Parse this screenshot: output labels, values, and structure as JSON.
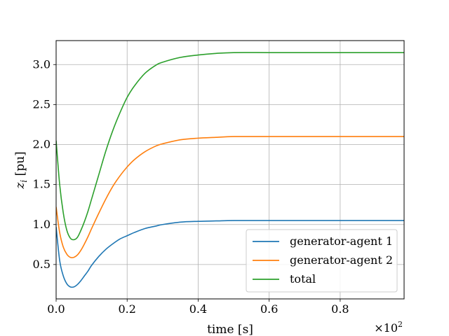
{
  "chart_data": {
    "type": "line",
    "title": "",
    "xlabel": "time [s]",
    "ylabel": "z_i [pu]",
    "ylabel_main": "z",
    "ylabel_sub": "i",
    "ylabel_unit": " [pu]",
    "x_offset_label": "×10",
    "x_offset_exponent": "2",
    "xlim": [
      0.0,
      0.98
    ],
    "ylim": [
      0.07,
      3.3
    ],
    "xticks": [
      0.0,
      0.2,
      0.4,
      0.6,
      0.8
    ],
    "xtick_labels": [
      "0.0",
      "0.2",
      "0.4",
      "0.6",
      "0.8"
    ],
    "yticks": [
      0.5,
      1.0,
      1.5,
      2.0,
      2.5,
      3.0
    ],
    "ytick_labels": [
      "0.5",
      "1.0",
      "1.5",
      "2.0",
      "2.5",
      "3.0"
    ],
    "grid": true,
    "legend_position": "lower-right",
    "series": [
      {
        "name": "generator-agent 1",
        "color": "#1f77b4",
        "x": [
          0.0,
          0.01,
          0.02,
          0.03,
          0.04,
          0.05,
          0.06,
          0.07,
          0.08,
          0.09,
          0.1,
          0.12,
          0.14,
          0.16,
          0.18,
          0.2,
          0.22,
          0.25,
          0.28,
          0.3,
          0.35,
          0.4,
          0.45,
          0.5,
          0.6,
          0.7,
          0.8,
          0.9,
          0.98
        ],
        "y": [
          0.97,
          0.55,
          0.36,
          0.26,
          0.22,
          0.22,
          0.25,
          0.3,
          0.36,
          0.42,
          0.49,
          0.6,
          0.69,
          0.76,
          0.82,
          0.86,
          0.9,
          0.95,
          0.98,
          1.0,
          1.03,
          1.04,
          1.045,
          1.05,
          1.05,
          1.05,
          1.05,
          1.05,
          1.05
        ]
      },
      {
        "name": "generator-agent 2",
        "color": "#ff7f0e",
        "x": [
          0.0,
          0.01,
          0.02,
          0.03,
          0.04,
          0.05,
          0.06,
          0.07,
          0.08,
          0.09,
          0.1,
          0.12,
          0.14,
          0.16,
          0.18,
          0.2,
          0.22,
          0.25,
          0.28,
          0.3,
          0.35,
          0.4,
          0.45,
          0.5,
          0.6,
          0.7,
          0.8,
          0.9,
          0.98
        ],
        "y": [
          1.22,
          0.9,
          0.72,
          0.63,
          0.59,
          0.59,
          0.62,
          0.68,
          0.76,
          0.85,
          0.95,
          1.14,
          1.32,
          1.48,
          1.61,
          1.72,
          1.81,
          1.91,
          1.98,
          2.01,
          2.06,
          2.08,
          2.09,
          2.1,
          2.1,
          2.1,
          2.1,
          2.1,
          2.1
        ]
      },
      {
        "name": "total",
        "color": "#2ca02c",
        "x": [
          0.0,
          0.01,
          0.02,
          0.03,
          0.04,
          0.05,
          0.06,
          0.07,
          0.08,
          0.09,
          0.1,
          0.12,
          0.14,
          0.16,
          0.18,
          0.2,
          0.22,
          0.25,
          0.28,
          0.3,
          0.35,
          0.4,
          0.45,
          0.5,
          0.6,
          0.7,
          0.8,
          0.9,
          0.98
        ],
        "y": [
          2.05,
          1.5,
          1.15,
          0.93,
          0.83,
          0.81,
          0.84,
          0.93,
          1.04,
          1.17,
          1.32,
          1.62,
          1.92,
          2.18,
          2.4,
          2.59,
          2.73,
          2.89,
          2.99,
          3.03,
          3.09,
          3.12,
          3.14,
          3.15,
          3.15,
          3.15,
          3.15,
          3.15,
          3.15
        ]
      }
    ]
  }
}
